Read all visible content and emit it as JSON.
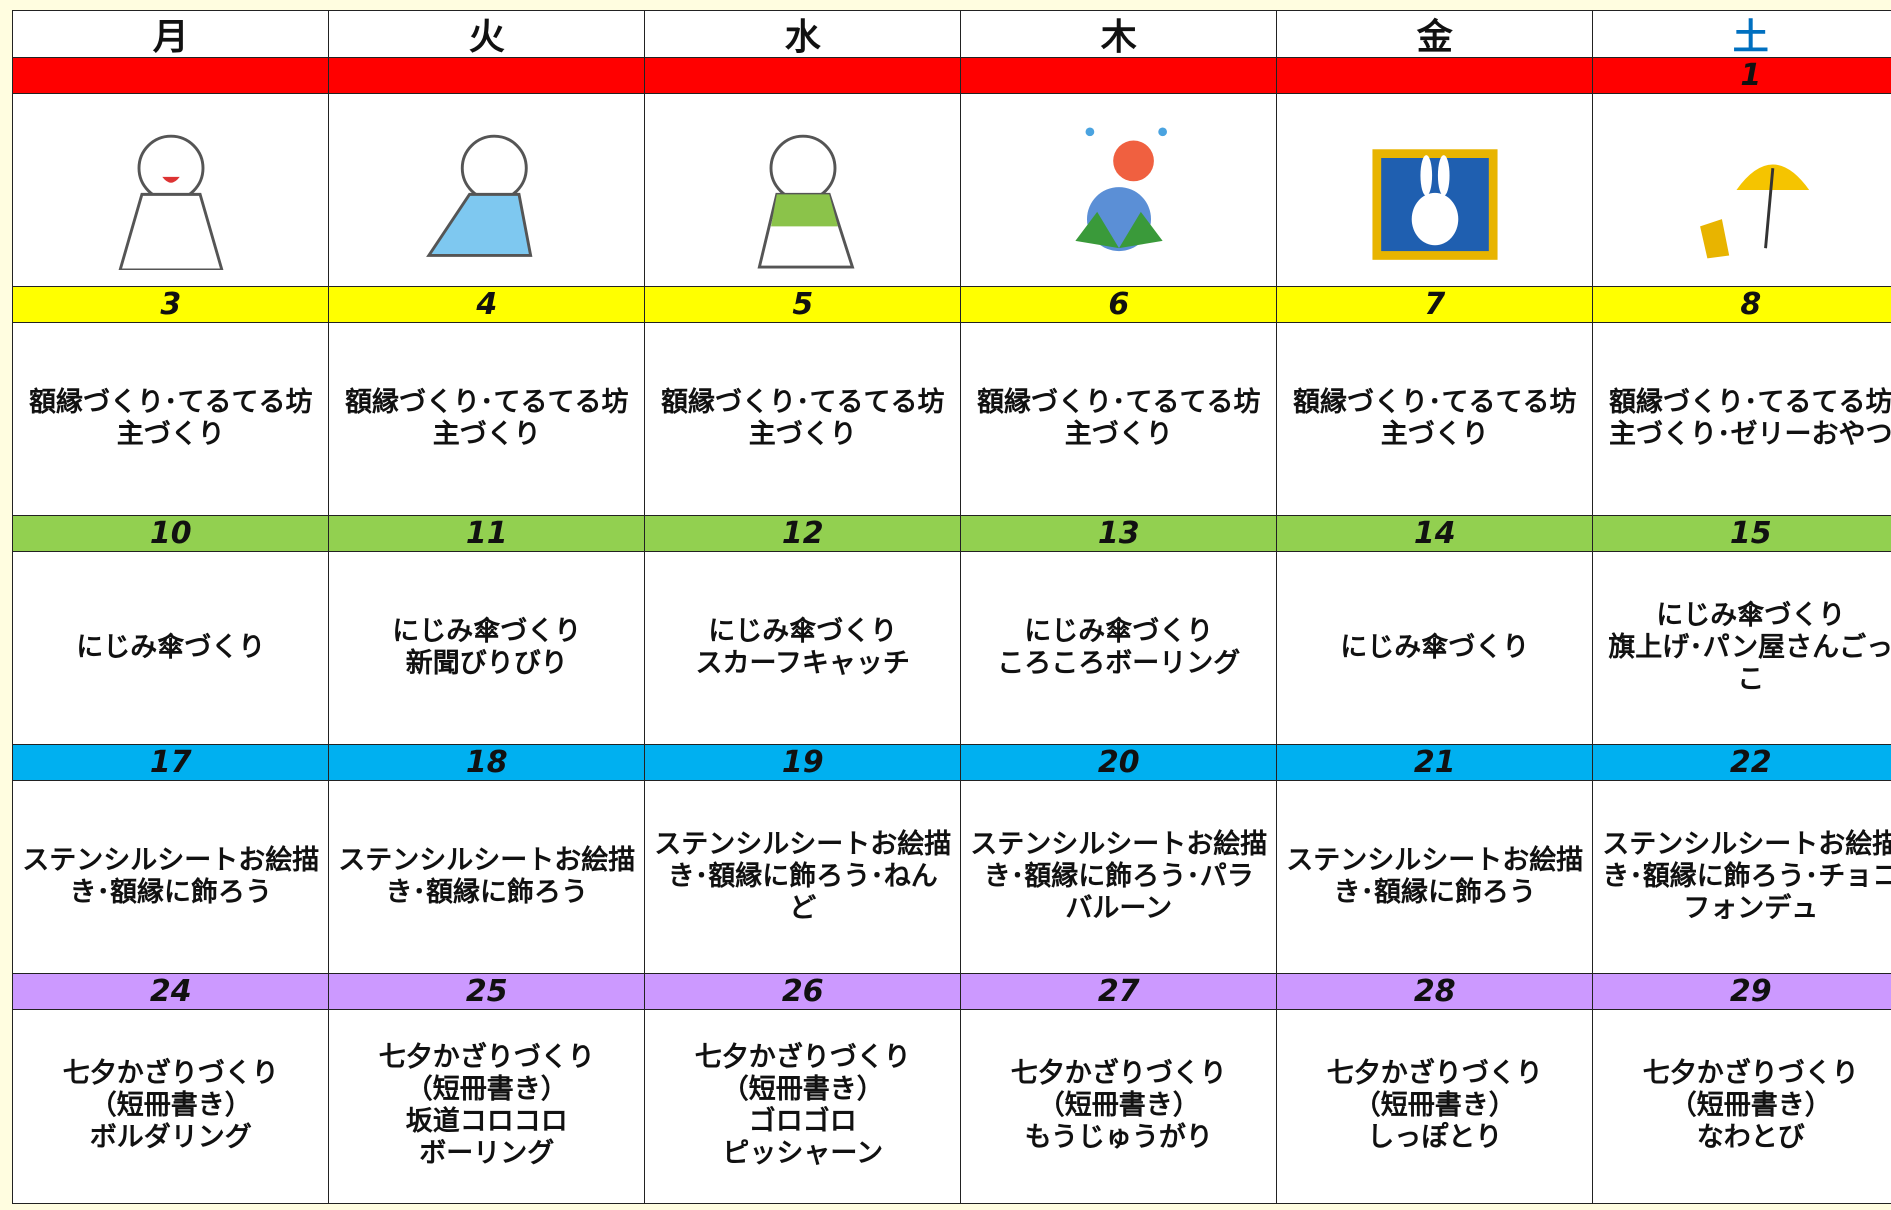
{
  "header": {
    "days": [
      "月",
      "火",
      "水",
      "木",
      "金",
      "土"
    ]
  },
  "weeks": [
    {
      "dates": [
        null,
        null,
        null,
        null,
        null,
        "1"
      ],
      "activities": null
    },
    {
      "dates": [
        "3",
        "4",
        "5",
        "6",
        "7",
        "8"
      ],
      "activities": [
        [
          "額縁づくり･てるてる坊",
          "主づくり"
        ],
        [
          "額縁づくり･てるてる坊",
          "主づくり"
        ],
        [
          "額縁づくり･てるてる坊",
          "主づくり"
        ],
        [
          "額縁づくり･てるてる坊",
          "主づくり"
        ],
        [
          "額縁づくり･てるてる坊",
          "主づくり"
        ],
        [
          "額縁づくり･てるてる坊",
          "主づくり･ゼリーおやつ"
        ]
      ]
    },
    {
      "dates": [
        "10",
        "11",
        "12",
        "13",
        "14",
        "15"
      ],
      "activities": [
        [
          "にじみ傘づくり"
        ],
        [
          "にじみ傘づくり",
          "新聞びりびり"
        ],
        [
          "にじみ傘づくり",
          "スカーフキャッチ"
        ],
        [
          "にじみ傘づくり",
          "ころころボーリング"
        ],
        [
          "にじみ傘づくり"
        ],
        [
          "にじみ傘づくり",
          "旗上げ･パン屋さんごっ",
          "こ"
        ]
      ]
    },
    {
      "dates": [
        "17",
        "18",
        "19",
        "20",
        "21",
        "22"
      ],
      "activities": [
        [
          "ステンシルシートお絵描",
          "き･額縁に飾ろう"
        ],
        [
          "ステンシルシートお絵描",
          "き･額縁に飾ろう"
        ],
        [
          "ステンシルシートお絵描",
          "き･額縁に飾ろう･ねん",
          "ど"
        ],
        [
          "ステンシルシートお絵描",
          "き･額縁に飾ろう･パラ",
          "バルーン"
        ],
        [
          "ステンシルシートお絵描",
          "き･額縁に飾ろう"
        ],
        [
          "ステンシルシートお絵描",
          "き･額縁に飾ろう･チョコ",
          "フォンデュ"
        ]
      ]
    },
    {
      "dates": [
        "24",
        "25",
        "26",
        "27",
        "28",
        "29"
      ],
      "activities": [
        [
          "七夕かざりづくり",
          "（短冊書き）",
          "ボルダリング"
        ],
        [
          "七夕かざりづくり",
          "（短冊書き）",
          "坂道コロコロ",
          "ボーリング"
        ],
        [
          "七夕かざりづくり",
          "（短冊書き）",
          "ゴロゴロ",
          "ピッシャーン"
        ],
        [
          "七夕かざりづくり",
          "（短冊書き）",
          "もうじゅうがり"
        ],
        [
          "七夕かざりづくり",
          "（短冊書き）",
          "しっぽとり"
        ],
        [
          "七夕かざりづくり",
          "（短冊書き）",
          "なわとび"
        ]
      ]
    }
  ]
}
